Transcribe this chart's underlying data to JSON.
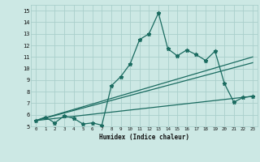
{
  "xlabel": "Humidex (Indice chaleur)",
  "bg_color": "#cce8e4",
  "grid_color": "#aacfcb",
  "line_color": "#1a6b60",
  "xticks": [
    0,
    1,
    2,
    3,
    4,
    5,
    6,
    7,
    8,
    9,
    10,
    11,
    12,
    13,
    14,
    15,
    16,
    17,
    18,
    19,
    20,
    21,
    22,
    23
  ],
  "yticks": [
    5,
    6,
    7,
    8,
    9,
    10,
    11,
    12,
    13,
    14,
    15
  ],
  "main_x": [
    0,
    1,
    2,
    3,
    4,
    5,
    6,
    7,
    8,
    9,
    10,
    11,
    12,
    13,
    14,
    15,
    16,
    17,
    18,
    19,
    20,
    21,
    22,
    23
  ],
  "main_y": [
    5.5,
    5.8,
    5.3,
    5.9,
    5.7,
    5.2,
    5.3,
    5.1,
    8.5,
    9.3,
    10.4,
    12.5,
    13.0,
    14.8,
    11.7,
    11.1,
    11.6,
    11.2,
    10.7,
    11.5,
    8.7,
    7.1,
    7.5,
    7.6
  ],
  "trend1_x": [
    0,
    23
  ],
  "trend1_y": [
    5.5,
    11.0
  ],
  "trend2_x": [
    0,
    23
  ],
  "trend2_y": [
    5.5,
    10.5
  ],
  "trend3_x": [
    0,
    23
  ],
  "trend3_y": [
    5.5,
    7.6
  ]
}
